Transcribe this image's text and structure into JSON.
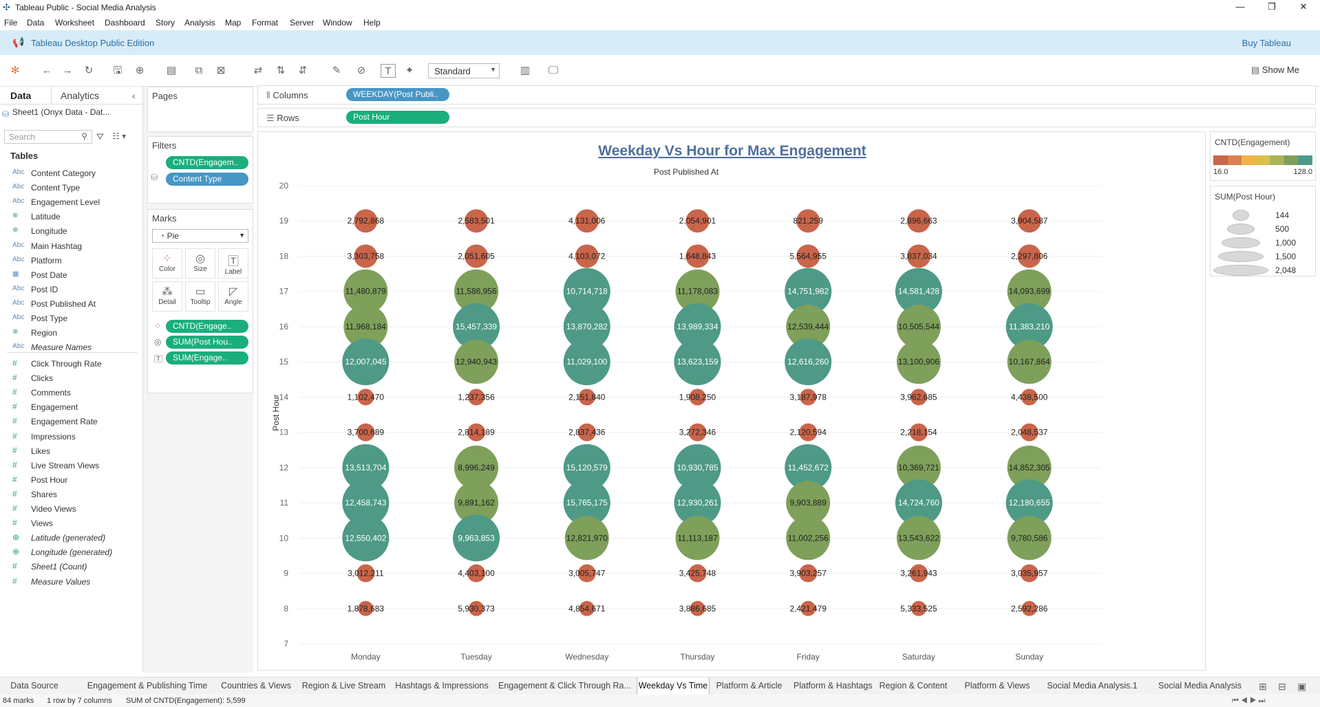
{
  "window": {
    "title": "Tableau Public - Social Media Analysis",
    "buttons": [
      "—",
      "❐",
      "✕"
    ]
  },
  "menu": [
    "File",
    "Data",
    "Worksheet",
    "Dashboard",
    "Story",
    "Analysis",
    "Map",
    "Format",
    "Server",
    "Window",
    "Help"
  ],
  "banner": {
    "edition": "Tableau Desktop Public Edition",
    "buy": "Buy Tableau"
  },
  "toolbar": {
    "fit": "Standard",
    "show_me": "Show Me"
  },
  "datapane": {
    "tab_data": "Data",
    "tab_analytics": "Analytics",
    "source": "Sheet1 (Onyx Data - Dat...",
    "search_placeholder": "Search",
    "tables_header": "Tables",
    "dimensions": [
      {
        "type": "Abc",
        "name": "Content Category"
      },
      {
        "type": "Abc",
        "name": "Content Type"
      },
      {
        "type": "Abc",
        "name": "Engagement Level"
      },
      {
        "type": "⊕",
        "name": "Latitude"
      },
      {
        "type": "⊕",
        "name": "Longitude"
      },
      {
        "type": "Abc",
        "name": "Main Hashtag"
      },
      {
        "type": "Abc",
        "name": "Platform"
      },
      {
        "type": "▦",
        "name": "Post Date"
      },
      {
        "type": "Abc",
        "name": "Post ID"
      },
      {
        "type": "Abc",
        "name": "Post Published At"
      },
      {
        "type": "Abc",
        "name": "Post Type"
      },
      {
        "type": "⊕",
        "name": "Region"
      },
      {
        "type": "Abc",
        "name": "Measure Names"
      }
    ],
    "measures": [
      {
        "type": "#",
        "name": "Click Through Rate"
      },
      {
        "type": "#",
        "name": "Clicks"
      },
      {
        "type": "#",
        "name": "Comments"
      },
      {
        "type": "#",
        "name": "Engagement"
      },
      {
        "type": "#",
        "name": "Engagement Rate"
      },
      {
        "type": "#",
        "name": "Impressions"
      },
      {
        "type": "#",
        "name": "Likes"
      },
      {
        "type": "#",
        "name": "Live Stream Views"
      },
      {
        "type": "#",
        "name": "Post Hour"
      },
      {
        "type": "#",
        "name": "Shares"
      },
      {
        "type": "#",
        "name": "Video Views"
      },
      {
        "type": "#",
        "name": "Views"
      },
      {
        "type": "⊕",
        "name": "Latitude (generated)"
      },
      {
        "type": "⊕",
        "name": "Longitude (generated)"
      },
      {
        "type": "#",
        "name": "Sheet1 (Count)"
      },
      {
        "type": "#",
        "name": "Measure Values"
      }
    ]
  },
  "cards": {
    "pages": "Pages",
    "filters": "Filters",
    "filter_pills": [
      "CNTD(Engagem..",
      "Content Type"
    ],
    "marks": "Marks",
    "mark_type": "Pie",
    "mark_buttons": [
      {
        "label": "Color",
        "icon": "color-icon"
      },
      {
        "label": "Size",
        "icon": "size-icon"
      },
      {
        "label": "Label",
        "icon": "label-icon"
      },
      {
        "label": "Detail",
        "icon": "detail-icon"
      },
      {
        "label": "Tooltip",
        "icon": "tooltip-icon"
      },
      {
        "label": "Angle",
        "icon": "angle-icon"
      }
    ],
    "mark_pills": [
      "CNTD(Engage..",
      "SUM(Post Hou..",
      "SUM(Engage.."
    ]
  },
  "shelves": {
    "columns_label": "Columns",
    "columns_pill": "WEEKDAY(Post Publi..",
    "rows_label": "Rows",
    "rows_pill": "Post Hour"
  },
  "view": {
    "title": "Weekday Vs Hour for Max Engagement",
    "top_axis_label": "Post Published At",
    "y_axis_label": "Post Hour"
  },
  "chart_data": {
    "type": "scatter",
    "title": "Weekday Vs Hour for Max Engagement",
    "xlabel": "Post Published At",
    "ylabel": "Post Hour",
    "categories": [
      "Monday",
      "Tuesday",
      "Wednesday",
      "Thursday",
      "Friday",
      "Saturday",
      "Sunday"
    ],
    "y_ticks": [
      7,
      8,
      9,
      10,
      11,
      12,
      13,
      14,
      15,
      16,
      17,
      18,
      19,
      20
    ],
    "ylim": [
      7,
      20
    ],
    "hours": [
      19,
      18,
      17,
      16,
      15,
      14,
      13,
      12,
      11,
      10,
      9,
      8
    ],
    "labels": {
      "19": [
        "2,792,868",
        "2,583,501",
        "4,131,006",
        "2,054,901",
        "821,259",
        "2,896,663",
        "3,904,587"
      ],
      "18": [
        "3,303,758",
        "2,051,605",
        "4,103,072",
        "1,648,843",
        "5,564,955",
        "3,837,034",
        "2,297,806"
      ],
      "17": [
        "11,480,879",
        "11,586,956",
        "10,714,718",
        "11,178,083",
        "14,751,982",
        "14,581,428",
        "14,093,699"
      ],
      "16": [
        "11,968,184",
        "15,457,339",
        "13,870,282",
        "13,989,334",
        "12,539,444",
        "10,505,544",
        "11,383,210"
      ],
      "15": [
        "12,007,045",
        "12,940,943",
        "11,029,100",
        "13,623,159",
        "12,616,260",
        "13,100,906",
        "10,167,864"
      ],
      "14": [
        "1,102,470",
        "1,237,356",
        "2,151,840",
        "1,908,250",
        "3,187,978",
        "3,962,685",
        "4,438,500"
      ],
      "13": [
        "3,700,689",
        "2,814,189",
        "2,837,436",
        "3,272,346",
        "2,120,594",
        "2,218,154",
        "2,048,537"
      ],
      "12": [
        "13,513,704",
        "8,996,249",
        "15,120,579",
        "10,930,785",
        "11,452,672",
        "10,369,721",
        "14,852,305"
      ],
      "11": [
        "12,458,743",
        "9,891,162",
        "15,765,175",
        "12,930,261",
        "9,903,889",
        "14,724,760",
        "12,180,655"
      ],
      "10": [
        "12,550,402",
        "9,963,853",
        "12,821,970",
        "11,113,187",
        "11,002,256",
        "13,543,622",
        "9,780,586"
      ],
      "9": [
        "3,012,211",
        "4,403,100",
        "3,005,747",
        "3,425,748",
        "3,903,257",
        "3,261,943",
        "3,035,957"
      ],
      "8": [
        "1,878,683",
        "5,930,373",
        "4,854,671",
        "3,886,685",
        "2,421,479",
        "5,333,525",
        "2,592,286"
      ]
    },
    "color_levels": {
      "19": [
        "r",
        "r",
        "r",
        "r",
        "r",
        "r",
        "r"
      ],
      "18": [
        "r",
        "r",
        "r",
        "r",
        "r",
        "r",
        "r"
      ],
      "17": [
        "g",
        "g",
        "t",
        "g",
        "t",
        "t",
        "g"
      ],
      "16": [
        "g",
        "t",
        "t",
        "t",
        "g",
        "g",
        "t"
      ],
      "15": [
        "t",
        "g",
        "t",
        "t",
        "t",
        "g",
        "g"
      ],
      "14": [
        "r",
        "r",
        "r",
        "r",
        "r",
        "r",
        "r"
      ],
      "13": [
        "r",
        "r",
        "r",
        "r",
        "r",
        "r",
        "r"
      ],
      "12": [
        "t",
        "g",
        "t",
        "t",
        "t",
        "g",
        "g"
      ],
      "11": [
        "t",
        "g",
        "t",
        "t",
        "g",
        "t",
        "t"
      ],
      "10": [
        "t",
        "t",
        "g",
        "g",
        "g",
        "g",
        "g"
      ],
      "9": [
        "r",
        "r",
        "r",
        "r",
        "r",
        "r",
        "r"
      ],
      "8": [
        "r",
        "r",
        "r",
        "r",
        "r",
        "r",
        "r"
      ]
    },
    "colors": {
      "r": "#c9654a",
      "g": "#7ea05a",
      "t": "#4e9a86"
    },
    "legend_color": {
      "title": "CNTD(Engagement)",
      "min": "16.0",
      "max": "128.0",
      "palette": [
        "#c9654a",
        "#d9814e",
        "#efb24a",
        "#d9c04c",
        "#a8b35a",
        "#7ea05a",
        "#4e9a86"
      ]
    },
    "legend_size": {
      "title": "SUM(Post Hour)",
      "values": [
        "144",
        "500",
        "1,000",
        "1,500",
        "2,048"
      ]
    }
  },
  "sheet_tabs": [
    "Data Source",
    "Engagement & Publishing Time",
    "Countries & Views",
    "Region & Live Stream",
    "Hashtags & Impressions",
    "Engagement & Click Through Ra...",
    "Weekday Vs Time",
    "Platform & Article",
    "Platform & Hashtags",
    "Region & Content",
    "Platform & Views",
    "Social Media Analysis.1",
    "Social Media Analysis"
  ],
  "status": {
    "marks": "84 marks",
    "rows": "1 row by 7 columns",
    "sum": "SUM of CNTD(Engagement): 5,599"
  }
}
